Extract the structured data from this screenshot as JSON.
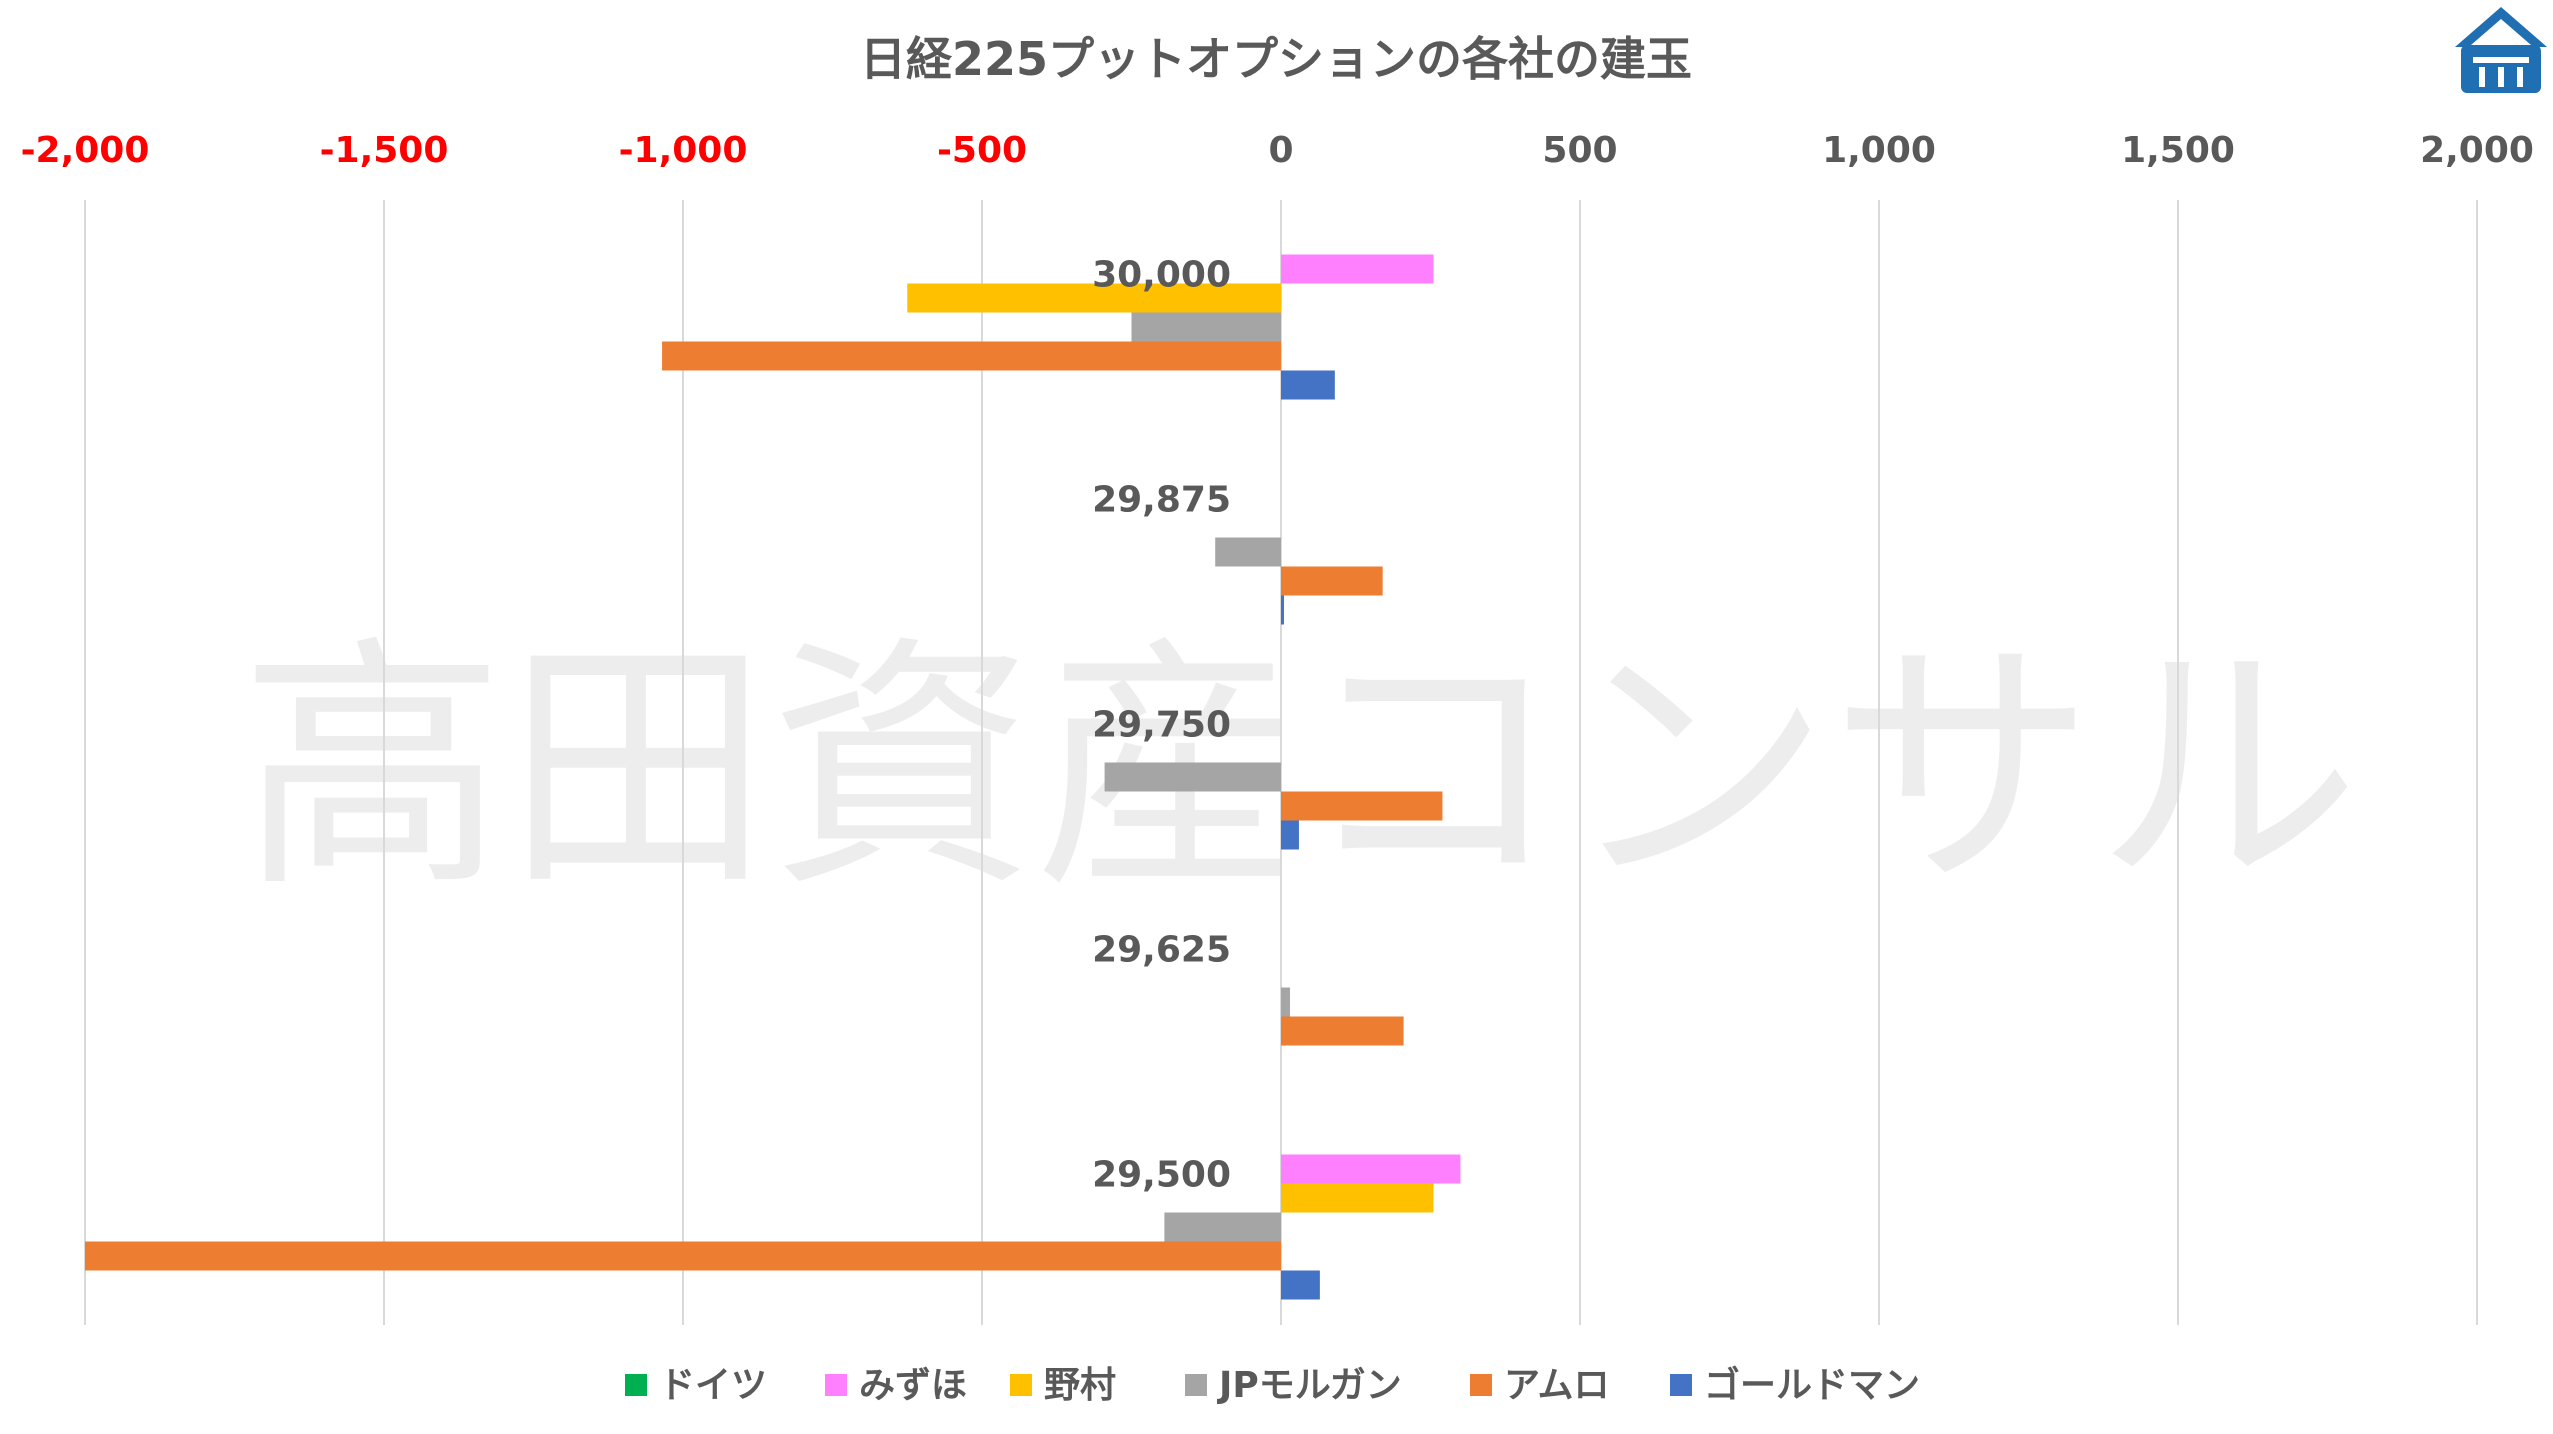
{
  "chart_data": {
    "type": "bar",
    "orientation": "horizontal",
    "title": "日経225プットオプションの各社の建玉",
    "xlabel": "",
    "ylabel": "",
    "xlim": [
      -2000,
      2000
    ],
    "x_ticks": [
      -2000,
      -1500,
      -1000,
      -500,
      0,
      500,
      1000,
      1500,
      2000
    ],
    "x_tick_labels": [
      "-2,000",
      "-1,500",
      "-1,000",
      "-500",
      "0",
      "500",
      "1,000",
      "1,500",
      "2,000"
    ],
    "negative_tick_color": "#ff0000",
    "positive_tick_color": "#595959",
    "grid": "vertical",
    "legend_position": "bottom",
    "categories": [
      "30,000",
      "29,875",
      "29,750",
      "29,625",
      "29,500"
    ],
    "series": [
      {
        "name": "ドイツ",
        "color": "#00b050",
        "values": [
          0,
          0,
          0,
          0,
          0
        ]
      },
      {
        "name": "みずほ",
        "color": "#ff80ff",
        "values": [
          255,
          0,
          0,
          0,
          300
        ]
      },
      {
        "name": "野村",
        "color": "#ffc000",
        "values": [
          -625,
          0,
          0,
          0,
          255
        ]
      },
      {
        "name": "JPモルガン",
        "color": "#a5a5a5",
        "values": [
          -250,
          -110,
          -295,
          15,
          -195
        ]
      },
      {
        "name": "アムロ",
        "color": "#ed7d31",
        "values": [
          -1035,
          170,
          270,
          205,
          -2000
        ]
      },
      {
        "name": "ゴールドマン",
        "color": "#4472c4",
        "values": [
          90,
          5,
          30,
          0,
          65
        ]
      }
    ]
  },
  "watermark": "高田資産コンサル",
  "logo": {
    "icon": "house-logo-icon",
    "color": "#1f6fb2"
  }
}
